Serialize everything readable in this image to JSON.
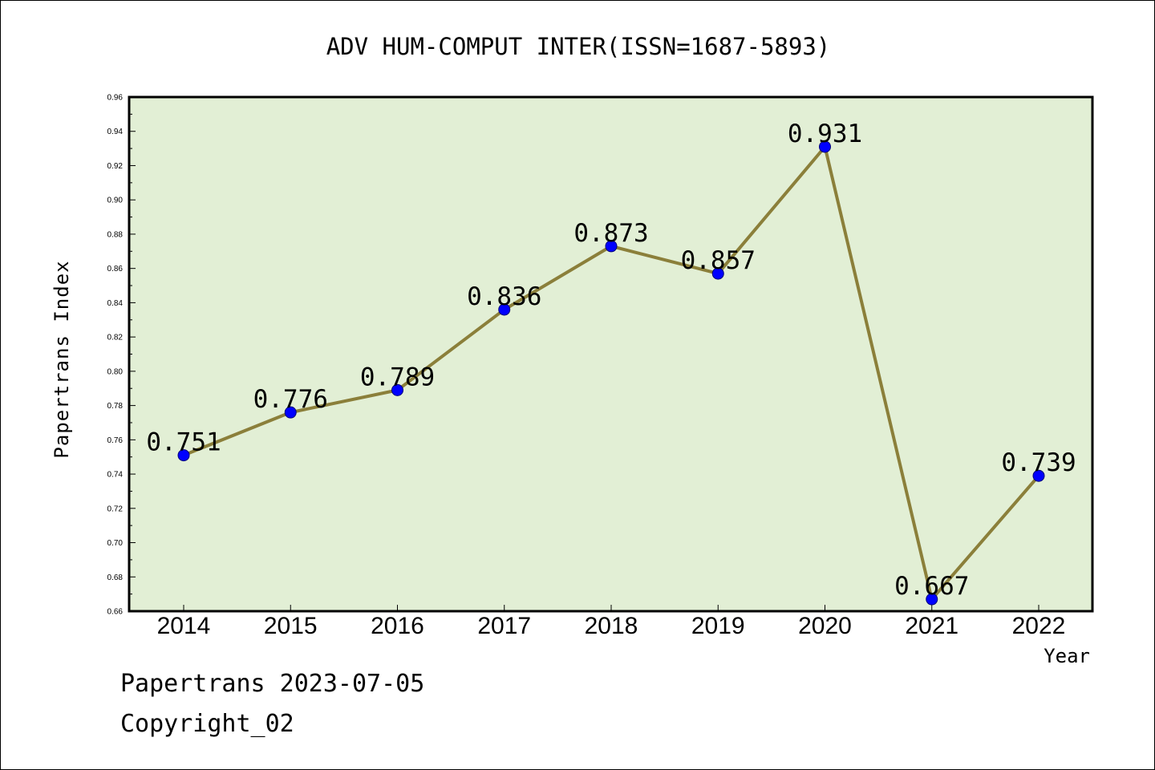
{
  "chart_data": {
    "type": "line",
    "title": "ADV HUM-COMPUT INTER(ISSN=1687-5893)",
    "xlabel": "Year",
    "ylabel": "Papertrans Index",
    "categories": [
      "2014",
      "2015",
      "2016",
      "2017",
      "2018",
      "2019",
      "2020",
      "2021",
      "2022"
    ],
    "values": [
      0.751,
      0.776,
      0.789,
      0.836,
      0.873,
      0.857,
      0.931,
      0.667,
      0.739
    ],
    "data_labels": [
      "0.751",
      "0.776",
      "0.789",
      "0.836",
      "0.873",
      "0.857",
      "0.931",
      "0.667",
      "0.739"
    ],
    "ylim": [
      0.66,
      0.96
    ],
    "yticks": [
      "0.66",
      "0.68",
      "0.70",
      "0.72",
      "0.74",
      "0.76",
      "0.78",
      "0.80",
      "0.82",
      "0.84",
      "0.86",
      "0.88",
      "0.90",
      "0.92",
      "0.94",
      "0.96"
    ],
    "grid": false,
    "colors": {
      "plot_background": "#e2efd5",
      "line": "#8b7f3a",
      "marker": "#0000ff"
    }
  },
  "footer": {
    "line1": "Papertrans 2023-07-05",
    "line2": "Copyright_02"
  }
}
